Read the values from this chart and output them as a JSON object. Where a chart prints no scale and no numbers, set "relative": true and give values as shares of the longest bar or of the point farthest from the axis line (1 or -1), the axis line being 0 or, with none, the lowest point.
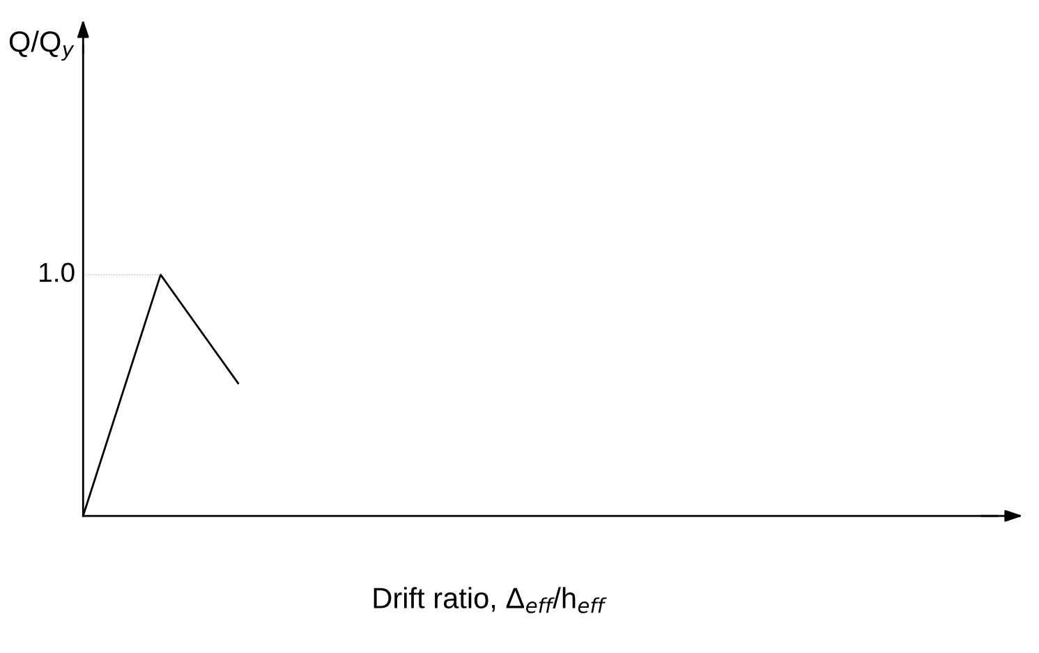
{
  "chart_data": {
    "type": "line",
    "relative": true,
    "categories": [
      null,
      null,
      null
    ],
    "series": [
      {
        "color": "#000000",
        "values": [
          0,
          1,
          0.55
        ]
      }
    ],
    "annotations": [
      "Q/Q$_{y}$",
      "Drift ratio, Δ$_{eff}$/h$_{eff}$"
    ],
    "ref_lines": [
      {
        "axis": "y",
        "value": 1,
        "label": "1.0",
        "line_style": "dotted",
        "color": "#bbbbbb"
      }
    ],
    "marker": "none",
    "line_style": "solid",
    "grid": false,
    "legend": false
  }
}
